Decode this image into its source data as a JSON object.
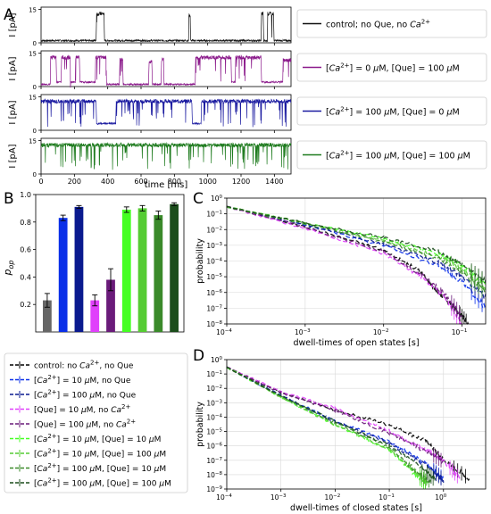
{
  "panels": {
    "A": "A",
    "B": "B",
    "C": "C",
    "D": "D"
  },
  "chart_data": [
    {
      "id": "A",
      "type": "line",
      "xlabel": "time [ms]",
      "xlim": [
        0,
        1500
      ],
      "xticks": [
        0,
        200,
        400,
        600,
        800,
        1000,
        1200,
        1400
      ],
      "ylabel": "I [pA]",
      "ylim": [
        0,
        16
      ],
      "yticks": [
        0,
        15
      ],
      "traces": [
        {
          "legend_html": "control; no Que, no <tspan font-style=\"italic\">Ca</tspan><tspan font-size=\"7\" dy=\"-4\">2+</tspan>",
          "color": "#111111",
          "segments": [
            [
              0,
              1
            ],
            [
              330,
              1
            ],
            [
              333,
              13
            ],
            [
              378,
              13
            ],
            [
              381,
              1
            ],
            [
              885,
              1
            ],
            [
              887,
              12
            ],
            [
              895,
              12
            ],
            [
              898,
              1
            ],
            [
              1320,
              1
            ],
            [
              1323,
              13
            ],
            [
              1333,
              13
            ],
            [
              1336,
              1
            ],
            [
              1358,
              1
            ],
            [
              1360,
              13
            ],
            [
              1395,
              13
            ],
            [
              1398,
              1
            ],
            [
              1500,
              1
            ]
          ]
        },
        {
          "legend_html": "[<tspan font-style=\"italic\">Ca</tspan><tspan font-size=\"7\" dy=\"-4\">2+</tspan><tspan dy=\"4\">] = 0 </tspan><tspan font-style=\"italic\">μ</tspan>M, [Que] = 100 <tspan font-style=\"italic\">μ</tspan>M",
          "color": "#8B1A8B",
          "segments": [
            [
              0,
              1
            ],
            [
              55,
              1
            ],
            [
              58,
              13
            ],
            [
              90,
              13
            ],
            [
              93,
              2
            ],
            [
              120,
              2
            ],
            [
              123,
              13
            ],
            [
              175,
              13
            ],
            [
              178,
              2
            ],
            [
              205,
              2
            ],
            [
              208,
              13
            ],
            [
              230,
              13
            ],
            [
              233,
              2
            ],
            [
              325,
              2
            ],
            [
              328,
              13
            ],
            [
              390,
              13
            ],
            [
              393,
              1
            ],
            [
              470,
              1
            ],
            [
              473,
              12
            ],
            [
              490,
              12
            ],
            [
              493,
              1
            ],
            [
              645,
              1
            ],
            [
              648,
              11
            ],
            [
              665,
              11
            ],
            [
              668,
              1
            ],
            [
              720,
              1
            ],
            [
              723,
              12
            ],
            [
              735,
              12
            ],
            [
              738,
              1
            ],
            [
              925,
              1
            ],
            [
              928,
              13
            ],
            [
              1140,
              13
            ],
            [
              1143,
              2
            ],
            [
              1165,
              2
            ],
            [
              1168,
              13
            ],
            [
              1320,
              13
            ],
            [
              1323,
              2
            ],
            [
              1450,
              2
            ],
            [
              1453,
              12
            ],
            [
              1500,
              12
            ]
          ]
        },
        {
          "legend_html": "[<tspan font-style=\"italic\">Ca</tspan><tspan font-size=\"7\" dy=\"-4\">2+</tspan><tspan dy=\"4\">] = 100 </tspan><tspan font-style=\"italic\">μ</tspan>M, [Que] = 0 <tspan font-style=\"italic\">μ</tspan>M",
          "color": "#1A1AA0",
          "segments": [
            [
              0,
              13
            ],
            [
              330,
              13
            ],
            [
              333,
              3
            ],
            [
              448,
              3
            ],
            [
              451,
              13
            ],
            [
              905,
              13
            ],
            [
              908,
              3
            ],
            [
              960,
              3
            ],
            [
              963,
              13
            ],
            [
              1500,
              13
            ]
          ]
        },
        {
          "legend_html": "[<tspan font-style=\"italic\">Ca</tspan><tspan font-size=\"7\" dy=\"-4\">2+</tspan><tspan dy=\"4\">] = 100 </tspan><tspan font-style=\"italic\">μ</tspan>M, [Que] = 100 <tspan font-style=\"italic\">μ</tspan>M",
          "color": "#1E7B1E",
          "segments": [
            [
              0,
              13
            ],
            [
              1500,
              13
            ]
          ]
        }
      ]
    },
    {
      "id": "B",
      "type": "bar",
      "ylabel_html": "<tspan font-style=\"italic\">p</tspan><tspan font-style=\"italic\" font-size=\"8\" dy=\"3\">op</tspan>",
      "ylim": [
        0,
        1.0
      ],
      "yticks": [
        0.2,
        0.4,
        0.6,
        0.8,
        1.0
      ],
      "values": [
        0.23,
        0.83,
        0.91,
        0.23,
        0.38,
        0.89,
        0.9,
        0.85,
        0.93
      ],
      "errors": [
        0.05,
        0.02,
        0.01,
        0.04,
        0.08,
        0.02,
        0.02,
        0.03,
        0.01
      ],
      "colors": [
        "#666666",
        "#0A2FE8",
        "#0A1A8F",
        "#E040FB",
        "#6A1B7A",
        "#44FF22",
        "#55CC33",
        "#3A8A2A",
        "#1B4D1B"
      ]
    },
    {
      "id": "C",
      "type": "line",
      "xscale": "log",
      "yscale": "log",
      "xlabel": "dwell-times of open states [s]",
      "ylabel": "probability",
      "xlim": [
        0.0001,
        0.2
      ],
      "ylim": [
        1e-08,
        1
      ],
      "xticks": [
        -4,
        -3,
        -2,
        -1
      ],
      "yticks": [
        -8,
        -7,
        -6,
        -5,
        -4,
        -3,
        -2,
        -1,
        0
      ],
      "series": [
        {
          "color": "#000000",
          "points": [
            [
              0.0001,
              0.28
            ],
            [
              0.001,
              0.015
            ],
            [
              0.01,
              0.0005
            ],
            [
              0.03,
              2e-05
            ],
            [
              0.05,
              1e-06
            ],
            [
              0.08,
              1e-07
            ],
            [
              0.12,
              1e-08
            ]
          ]
        },
        {
          "color": "#0A2FE8",
          "points": [
            [
              0.0001,
              0.28
            ],
            [
              0.001,
              0.02
            ],
            [
              0.01,
              0.001
            ],
            [
              0.05,
              5e-05
            ],
            [
              0.1,
              5e-06
            ],
            [
              0.2,
              1e-07
            ]
          ]
        },
        {
          "color": "#0A1A8F",
          "points": [
            [
              0.0001,
              0.28
            ],
            [
              0.001,
              0.02
            ],
            [
              0.01,
              0.0012
            ],
            [
              0.05,
              8e-05
            ],
            [
              0.1,
              1e-05
            ],
            [
              0.2,
              5e-07
            ]
          ]
        },
        {
          "color": "#E040FB",
          "points": [
            [
              0.0001,
              0.28
            ],
            [
              0.001,
              0.012
            ],
            [
              0.01,
              0.0003
            ],
            [
              0.03,
              1e-05
            ],
            [
              0.06,
              5e-07
            ],
            [
              0.1,
              1e-08
            ]
          ]
        },
        {
          "color": "#6A1B7A",
          "points": [
            [
              0.0001,
              0.28
            ],
            [
              0.001,
              0.014
            ],
            [
              0.01,
              0.0004
            ],
            [
              0.03,
              1.5e-05
            ],
            [
              0.06,
              8e-07
            ],
            [
              0.1,
              3e-08
            ]
          ]
        },
        {
          "color": "#44FF22",
          "points": [
            [
              0.0001,
              0.28
            ],
            [
              0.001,
              0.025
            ],
            [
              0.01,
              0.0025
            ],
            [
              0.05,
              0.0003
            ],
            [
              0.1,
              5e-05
            ],
            [
              0.2,
              4e-06
            ]
          ]
        },
        {
          "color": "#55CC33",
          "points": [
            [
              0.0001,
              0.28
            ],
            [
              0.001,
              0.024
            ],
            [
              0.01,
              0.002
            ],
            [
              0.05,
              0.0002
            ],
            [
              0.1,
              3e-05
            ],
            [
              0.2,
              2e-06
            ]
          ]
        },
        {
          "color": "#3A8A2A",
          "points": [
            [
              0.0001,
              0.28
            ],
            [
              0.001,
              0.023
            ],
            [
              0.01,
              0.0018
            ],
            [
              0.05,
              0.00015
            ],
            [
              0.1,
              2e-05
            ],
            [
              0.2,
              1e-06
            ]
          ]
        },
        {
          "color": "#1B4D1B",
          "points": [
            [
              0.0001,
              0.28
            ],
            [
              0.001,
              0.026
            ],
            [
              0.01,
              0.003
            ],
            [
              0.05,
              0.0004
            ],
            [
              0.1,
              6e-05
            ],
            [
              0.2,
              5e-06
            ]
          ]
        }
      ]
    },
    {
      "id": "D",
      "type": "line",
      "xscale": "log",
      "yscale": "log",
      "xlabel": "dwell-times of closed states [s]",
      "ylabel": "probability",
      "xlim": [
        0.0001,
        6
      ],
      "ylim": [
        1e-09,
        1
      ],
      "xticks": [
        -4,
        -3,
        -2,
        -1,
        0
      ],
      "yticks": [
        -9,
        -8,
        -7,
        -6,
        -5,
        -4,
        -3,
        -2,
        -1,
        0
      ],
      "series": [
        {
          "color": "#000000",
          "points": [
            [
              0.0001,
              0.3
            ],
            [
              0.001,
              0.005
            ],
            [
              0.01,
              0.0003
            ],
            [
              0.1,
              3e-05
            ],
            [
              0.5,
              2e-06
            ],
            [
              1,
              1e-07
            ],
            [
              3,
              5e-09
            ]
          ]
        },
        {
          "color": "#0A2FE8",
          "points": [
            [
              0.0001,
              0.3
            ],
            [
              0.001,
              0.003
            ],
            [
              0.01,
              6e-05
            ],
            [
              0.1,
              2e-06
            ],
            [
              0.5,
              5e-08
            ],
            [
              1,
              5e-09
            ]
          ]
        },
        {
          "color": "#0A1A8F",
          "points": [
            [
              0.0001,
              0.3
            ],
            [
              0.001,
              0.003
            ],
            [
              0.01,
              5e-05
            ],
            [
              0.1,
              1.5e-06
            ],
            [
              0.5,
              4e-08
            ],
            [
              1,
              4e-09
            ]
          ]
        },
        {
          "color": "#E040FB",
          "points": [
            [
              0.0001,
              0.3
            ],
            [
              0.001,
              0.006
            ],
            [
              0.01,
              0.0004
            ],
            [
              0.1,
              1e-05
            ],
            [
              0.5,
              5e-07
            ],
            [
              1,
              1e-07
            ],
            [
              2,
              5e-09
            ]
          ]
        },
        {
          "color": "#6A1B7A",
          "points": [
            [
              0.0001,
              0.3
            ],
            [
              0.001,
              0.005
            ],
            [
              0.01,
              0.0003
            ],
            [
              0.1,
              8e-06
            ],
            [
              0.5,
              4e-07
            ],
            [
              1,
              8e-08
            ]
          ]
        },
        {
          "color": "#44FF22",
          "points": [
            [
              0.0001,
              0.3
            ],
            [
              0.001,
              0.0025
            ],
            [
              0.01,
              3e-05
            ],
            [
              0.1,
              5e-07
            ],
            [
              0.3,
              1e-08
            ],
            [
              0.5,
              2e-09
            ]
          ]
        },
        {
          "color": "#55CC33",
          "points": [
            [
              0.0001,
              0.3
            ],
            [
              0.001,
              0.0025
            ],
            [
              0.01,
              3e-05
            ],
            [
              0.1,
              6e-07
            ],
            [
              0.3,
              1.5e-08
            ],
            [
              0.5,
              3e-09
            ]
          ]
        },
        {
          "color": "#3A8A2A",
          "points": [
            [
              0.0001,
              0.3
            ],
            [
              0.001,
              0.0028
            ],
            [
              0.01,
              4e-05
            ],
            [
              0.1,
              8e-07
            ],
            [
              0.3,
              2e-08
            ],
            [
              0.6,
              3e-09
            ]
          ]
        },
        {
          "color": "#1B4D1B",
          "points": [
            [
              0.0001,
              0.3
            ],
            [
              0.001,
              0.003
            ],
            [
              0.01,
              5e-05
            ],
            [
              0.1,
              1e-06
            ],
            [
              0.4,
              3e-08
            ],
            [
              0.7,
              4e-09
            ]
          ]
        }
      ]
    }
  ],
  "legend_bottom": [
    {
      "label_html": "control: no <tspan font-style=\"italic\">Ca</tspan><tspan font-size=\"7\" dy=\"-4\">2+</tspan><tspan dy=\"4\">, no Que</tspan>",
      "color": "#000000"
    },
    {
      "label_html": "[<tspan font-style=\"italic\">Ca</tspan><tspan font-size=\"7\" dy=\"-4\">2+</tspan><tspan dy=\"4\">] = 10 </tspan><tspan font-style=\"italic\">μ</tspan>M, no Que",
      "color": "#0A2FE8"
    },
    {
      "label_html": "[<tspan font-style=\"italic\">Ca</tspan><tspan font-size=\"7\" dy=\"-4\">2+</tspan><tspan dy=\"4\">] = 100 </tspan><tspan font-style=\"italic\">μ</tspan>M, no Que",
      "color": "#0A1A8F"
    },
    {
      "label_html": "[Que] = 10 <tspan font-style=\"italic\">μ</tspan>M, no <tspan font-style=\"italic\">Ca</tspan><tspan font-size=\"7\" dy=\"-4\">2+</tspan>",
      "color": "#E040FB"
    },
    {
      "label_html": "[Que] = 100 <tspan font-style=\"italic\">μ</tspan>M, no <tspan font-style=\"italic\">Ca</tspan><tspan font-size=\"7\" dy=\"-4\">2+</tspan>",
      "color": "#6A1B7A"
    },
    {
      "label_html": "[<tspan font-style=\"italic\">Ca</tspan><tspan font-size=\"7\" dy=\"-4\">2+</tspan><tspan dy=\"4\">] = 10 </tspan><tspan font-style=\"italic\">μ</tspan>M, [Que] = 10 <tspan font-style=\"italic\">μ</tspan>M",
      "color": "#44FF22"
    },
    {
      "label_html": "[<tspan font-style=\"italic\">Ca</tspan><tspan font-size=\"7\" dy=\"-4\">2+</tspan><tspan dy=\"4\">] = 10 </tspan><tspan font-style=\"italic\">μ</tspan>M, [Que] = 100 <tspan font-style=\"italic\">μ</tspan>M",
      "color": "#55CC33"
    },
    {
      "label_html": "[<tspan font-style=\"italic\">Ca</tspan><tspan font-size=\"7\" dy=\"-4\">2+</tspan><tspan dy=\"4\">] = 100 </tspan><tspan font-style=\"italic\">μ</tspan>M, [Que] = 10 <tspan font-style=\"italic\">μ</tspan>M",
      "color": "#3A8A2A"
    },
    {
      "label_html": "[<tspan font-style=\"italic\">Ca</tspan><tspan font-size=\"7\" dy=\"-4\">2+</tspan><tspan dy=\"4\">] = 100 </tspan><tspan font-style=\"italic\">μ</tspan>M, [Que] = 100 <tspan font-style=\"italic\">μ</tspan>M",
      "color": "#1B4D1B"
    }
  ]
}
